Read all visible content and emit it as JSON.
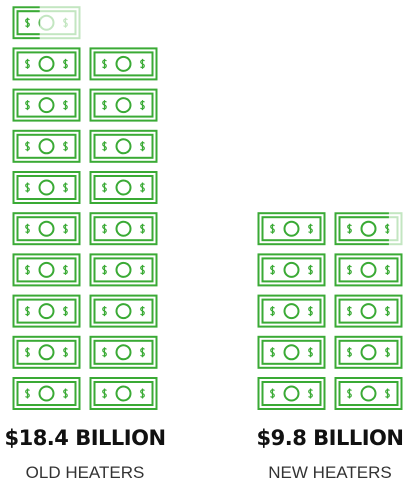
{
  "chart_data": {
    "type": "pictograph",
    "categories": [
      "OLD HEATERS",
      "NEW HEATERS"
    ],
    "values": [
      18.4,
      9.8
    ],
    "value_labels": [
      "$18.4 BILLION",
      "$9.8 BILLION"
    ],
    "color": "#3aaa35"
  }
}
